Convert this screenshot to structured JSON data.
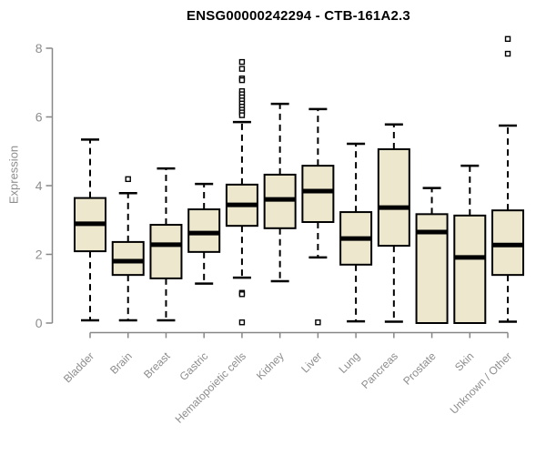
{
  "page": {
    "title": "ENSG00000242294 - CTB-161A2.3"
  },
  "chart_data": {
    "type": "boxplot",
    "title": "ENSG00000242294 - CTB-161A2.3",
    "xlabel": "",
    "ylabel": "Expression",
    "ylim": [
      0,
      8
    ],
    "yticks": [
      "0",
      "2",
      "4",
      "6",
      "8"
    ],
    "grid": false,
    "legend": "none",
    "categories": [
      "Bladder",
      "Brain",
      "Breast",
      "Gastric",
      "Hematopoietic cells",
      "Kidney",
      "Liver",
      "Lung",
      "Pancreas",
      "Prostate",
      "Skin",
      "Unknown / Other"
    ],
    "boxes": [
      {
        "category": "Bladder",
        "whisker_low": 0.08,
        "q1": 2.09,
        "median": 2.89,
        "q3": 3.64,
        "whisker_high": 5.34,
        "outliers": []
      },
      {
        "category": "Brain",
        "whisker_low": 0.08,
        "q1": 1.4,
        "median": 1.8,
        "q3": 2.36,
        "whisker_high": 3.78,
        "outliers": [
          4.19
        ]
      },
      {
        "category": "Breast",
        "whisker_low": 0.08,
        "q1": 1.3,
        "median": 2.28,
        "q3": 2.86,
        "whisker_high": 4.5,
        "outliers": []
      },
      {
        "category": "Gastric",
        "whisker_low": 1.15,
        "q1": 2.07,
        "median": 2.62,
        "q3": 3.31,
        "whisker_high": 4.05,
        "outliers": []
      },
      {
        "category": "Hematopoietic cells",
        "whisker_low": 1.32,
        "q1": 2.83,
        "median": 3.44,
        "q3": 4.03,
        "whisker_high": 5.85,
        "outliers": [
          7.6,
          7.4,
          7.12,
          7.07,
          6.75,
          6.66,
          6.57,
          6.48,
          6.39,
          6.3,
          6.21,
          6.13,
          6.05,
          0.88,
          0.84,
          0.02
        ]
      },
      {
        "category": "Kidney",
        "whisker_low": 1.22,
        "q1": 2.76,
        "median": 3.6,
        "q3": 4.32,
        "whisker_high": 6.38,
        "outliers": []
      },
      {
        "category": "Liver",
        "whisker_low": 1.91,
        "q1": 2.94,
        "median": 3.84,
        "q3": 4.58,
        "whisker_high": 6.23,
        "outliers": [
          0.02
        ]
      },
      {
        "category": "Lung",
        "whisker_low": 0.05,
        "q1": 1.7,
        "median": 2.46,
        "q3": 3.23,
        "whisker_high": 5.22,
        "outliers": []
      },
      {
        "category": "Pancreas",
        "whisker_low": 0.04,
        "q1": 2.25,
        "median": 3.36,
        "q3": 5.06,
        "whisker_high": 5.78,
        "outliers": []
      },
      {
        "category": "Prostate",
        "whisker_low": 0.0,
        "q1": 0.0,
        "median": 2.65,
        "q3": 3.17,
        "whisker_high": 3.93,
        "outliers": []
      },
      {
        "category": "Skin",
        "whisker_low": 0.0,
        "q1": 0.0,
        "median": 1.91,
        "q3": 3.13,
        "whisker_high": 4.58,
        "outliers": []
      },
      {
        "category": "Unknown / Other",
        "whisker_low": 0.04,
        "q1": 1.4,
        "median": 2.27,
        "q3": 3.28,
        "whisker_high": 5.75,
        "outliers": [
          8.27,
          7.84
        ]
      }
    ],
    "colors": {
      "box_fill": "#ece7cd",
      "box_border": "#000000",
      "median": "#000000",
      "whisker": "#000000",
      "outlier_border": "#000000",
      "outlier_fill": "#ffffff",
      "axis": "#878787",
      "tick_label": "#8d8d8d",
      "title": "#000000"
    }
  }
}
